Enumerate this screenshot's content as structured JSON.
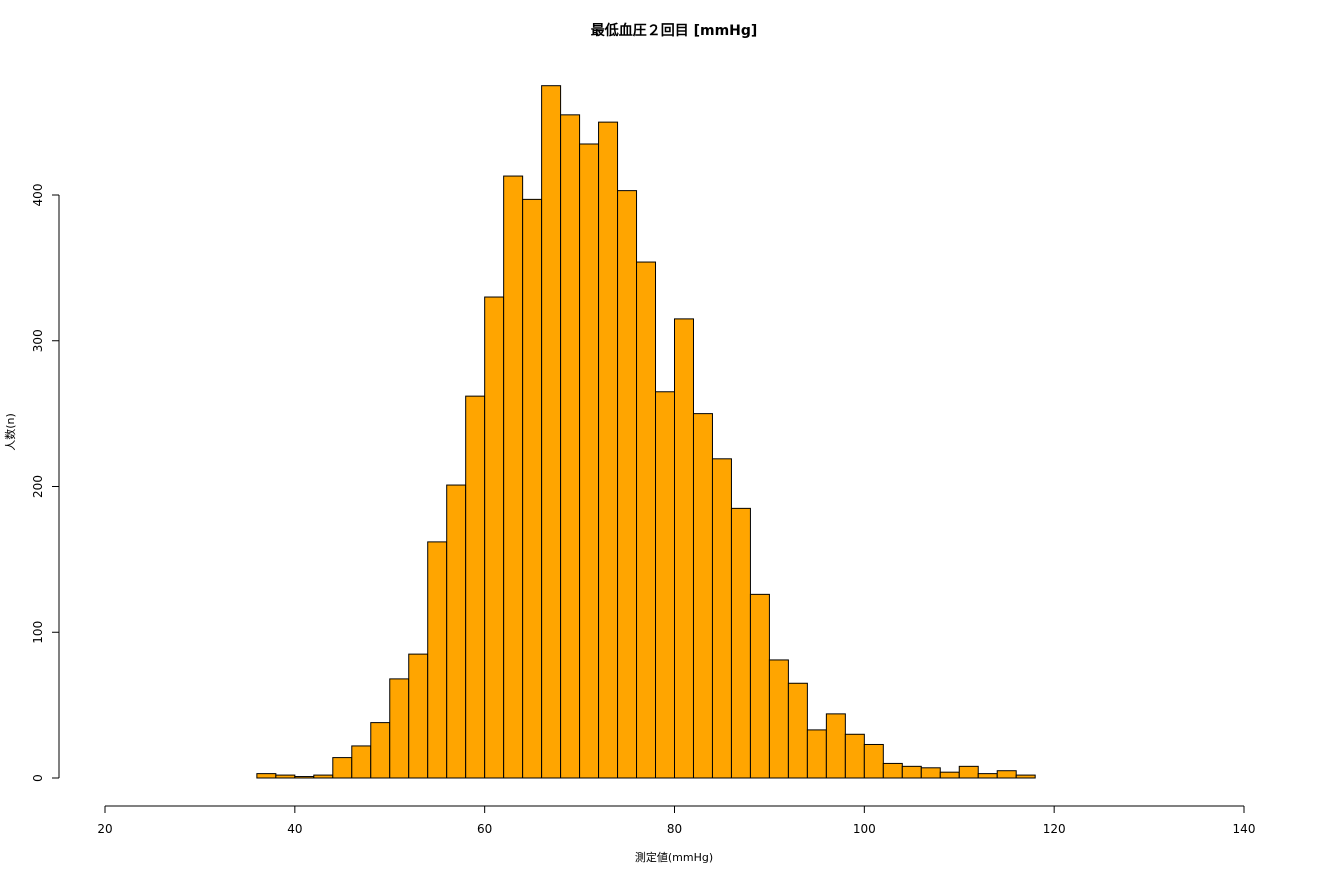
{
  "chart_data": {
    "type": "bar",
    "title": "最低血圧２回目 [mmHg]",
    "xlabel": "測定値(mmHg)",
    "ylabel": "人数(n)",
    "bar_color": "#FFA500",
    "border_color": "#000000",
    "xlim": [
      20,
      140
    ],
    "ylim": [
      0,
      475
    ],
    "x_ticks": [
      20,
      40,
      60,
      80,
      100,
      120,
      140
    ],
    "y_ticks": [
      0,
      100,
      200,
      300,
      400
    ],
    "bin_width": 2,
    "bin_starts": [
      36,
      38,
      40,
      42,
      44,
      46,
      48,
      50,
      52,
      54,
      56,
      58,
      60,
      62,
      64,
      66,
      68,
      70,
      72,
      74,
      76,
      78,
      80,
      82,
      84,
      86,
      88,
      90,
      92,
      94,
      96,
      98,
      100,
      102,
      104,
      106,
      108,
      110,
      112,
      114,
      116
    ],
    "values": [
      3,
      2,
      1,
      2,
      14,
      22,
      38,
      68,
      85,
      162,
      201,
      262,
      330,
      413,
      397,
      475,
      455,
      435,
      450,
      403,
      354,
      265,
      315,
      250,
      219,
      185,
      126,
      81,
      65,
      33,
      44,
      30,
      23,
      10,
      8,
      7,
      4,
      8,
      3,
      5,
      2
    ],
    "grid": false,
    "legend": "none"
  }
}
